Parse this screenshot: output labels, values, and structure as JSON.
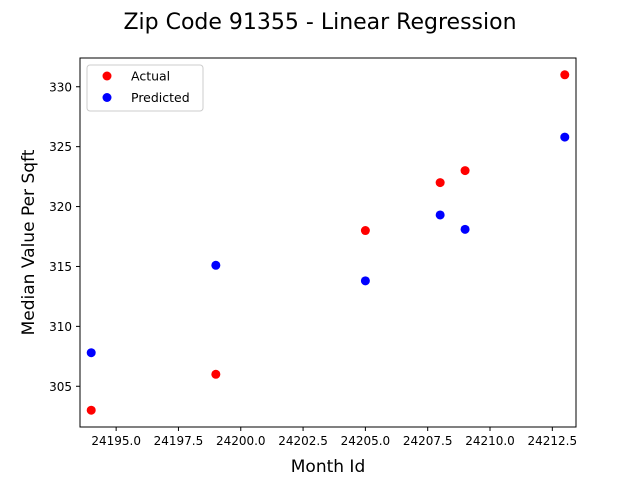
{
  "chart_data": {
    "type": "scatter",
    "title": "Zip Code 91355 - Linear Regression",
    "xlabel": "Month Id",
    "ylabel": "Median Value Per Sqft",
    "xlim": [
      24193.55,
      24213.45
    ],
    "ylim": [
      301.6,
      332.4
    ],
    "xticks": [
      24195.0,
      24197.5,
      24200.0,
      24202.5,
      24205.0,
      24207.5,
      24210.0,
      24212.5
    ],
    "xtick_labels": [
      "24195.0",
      "24197.5",
      "24200.0",
      "24202.5",
      "24205.0",
      "24207.5",
      "24210.0",
      "24212.5"
    ],
    "yticks": [
      305,
      310,
      315,
      320,
      325,
      330
    ],
    "ytick_labels": [
      "305",
      "310",
      "315",
      "320",
      "325",
      "330"
    ],
    "grid": false,
    "legend_position": "top-left",
    "series": [
      {
        "name": "Actual",
        "color": "#ff0000",
        "points": [
          {
            "x": 24194,
            "y": 303
          },
          {
            "x": 24199,
            "y": 306
          },
          {
            "x": 24205,
            "y": 318
          },
          {
            "x": 24208,
            "y": 322
          },
          {
            "x": 24209,
            "y": 323
          },
          {
            "x": 24213,
            "y": 331
          }
        ]
      },
      {
        "name": "Predicted",
        "color": "#0000ff",
        "points": [
          {
            "x": 24194,
            "y": 307.8
          },
          {
            "x": 24199,
            "y": 315.1
          },
          {
            "x": 24205,
            "y": 313.8
          },
          {
            "x": 24208,
            "y": 319.3
          },
          {
            "x": 24209,
            "y": 318.1
          },
          {
            "x": 24213,
            "y": 325.8
          }
        ]
      }
    ]
  }
}
